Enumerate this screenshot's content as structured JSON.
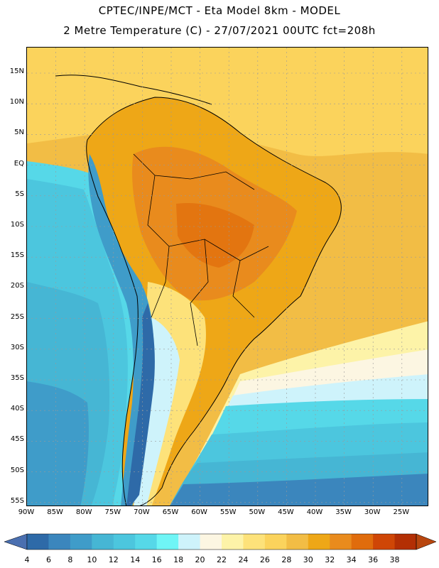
{
  "header": {
    "line1": "CPTEC/INPE/MCT  -  Eta Model 8km  - MODEL",
    "line2": "2 Metre Temperature (C) - 27/07/2021 00UTC fct=208h"
  },
  "map": {
    "lat_ticks": [
      "15N",
      "10N",
      "5N",
      "EQ",
      "5S",
      "10S",
      "15S",
      "20S",
      "25S",
      "30S",
      "35S",
      "40S",
      "45S",
      "50S",
      "55S"
    ],
    "lon_ticks": [
      "90W",
      "85W",
      "80W",
      "75W",
      "70W",
      "65W",
      "60W",
      "55W",
      "50W",
      "45W",
      "40W",
      "35W",
      "30W",
      "25W"
    ],
    "gridlines": true,
    "region": "South America"
  },
  "colorbar": {
    "labels": [
      "4",
      "6",
      "8",
      "10",
      "12",
      "14",
      "16",
      "18",
      "20",
      "22",
      "24",
      "26",
      "28",
      "30",
      "32",
      "34",
      "36",
      "38"
    ],
    "colors": [
      "#2e6aa8",
      "#3b86bd",
      "#3f9cc9",
      "#46b6d4",
      "#4cc6de",
      "#56d8e8",
      "#6ff5f6",
      "#cef3fb",
      "#fcf6e2",
      "#fdf3a8",
      "#fde27a",
      "#fbd35c",
      "#f2bd45",
      "#eea717",
      "#e98b1d",
      "#e06c0c",
      "#cf4606",
      "#b32f04"
    ],
    "left_arrow_color": "#4a6fb0",
    "right_arrow_color": "#b8460e"
  }
}
